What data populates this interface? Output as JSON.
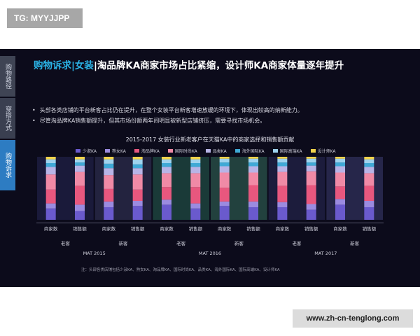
{
  "tag": "TG: MYYJJPP",
  "sidebar": [
    "购物路径",
    "穿搭方式",
    "购物诉求"
  ],
  "title": {
    "highlight": "购物诉求|女装",
    "rest": "|淘品牌KA商家市场占比紧缩，设计师KA商家体量逐年提升"
  },
  "bullets": [
    "头部各类店铺的平台新客占比仍在提升，在整个女装平台新客增速放缓的环境下，体现出较高的纳新能力。",
    "尽管淘品牌KA销售额提升，但其市场份额两年间明显被新型店铺挤压，需要寻找市场机会。"
  ],
  "chart_data": {
    "type": "bar",
    "stacked": true,
    "title": "2015-2017 女装行业新老客户在天猫KA中的商家选择和销售额贡献",
    "legend": [
      {
        "name": "少淑KA",
        "color": "#6a5acd"
      },
      {
        "name": "熟女KA",
        "color": "#9b8be0"
      },
      {
        "name": "淘品牌KA",
        "color": "#e8577e"
      },
      {
        "name": "国际时尚KA",
        "color": "#f08aa6"
      },
      {
        "name": "品类KA",
        "color": "#b8b4e6"
      },
      {
        "name": "海外国际KA",
        "color": "#3fa9d6"
      },
      {
        "name": "国际高端KA",
        "color": "#9fd3ee"
      },
      {
        "name": "设计师KA",
        "color": "#f2d34b"
      }
    ],
    "categories": [
      "商家数",
      "销售额",
      "商家数",
      "销售额",
      "商家数",
      "销售额",
      "商家数",
      "销售额",
      "商家数",
      "销售额",
      "商家数",
      "销售额"
    ],
    "groups": [
      "老客",
      "新客",
      "老客",
      "新客",
      "老客",
      "新客"
    ],
    "periods": [
      "MAT 2015",
      "MAT 2016",
      "MAT 2017"
    ],
    "ylim": [
      0,
      100
    ],
    "series_values": [
      [
        18,
        14,
        20,
        22,
        24,
        18,
        22,
        20,
        20,
        16,
        24,
        20
      ],
      [
        8,
        10,
        9,
        8,
        8,
        8,
        7,
        9,
        8,
        9,
        9,
        10
      ],
      [
        22,
        30,
        20,
        18,
        20,
        26,
        22,
        26,
        26,
        30,
        20,
        24
      ],
      [
        24,
        22,
        22,
        24,
        22,
        22,
        24,
        20,
        22,
        22,
        22,
        20
      ],
      [
        12,
        10,
        11,
        10,
        10,
        10,
        10,
        10,
        9,
        9,
        10,
        10
      ],
      [
        6,
        5,
        7,
        6,
        6,
        6,
        6,
        6,
        6,
        5,
        6,
        6
      ],
      [
        6,
        5,
        7,
        8,
        6,
        6,
        6,
        6,
        6,
        6,
        6,
        6
      ],
      [
        4,
        4,
        4,
        4,
        4,
        4,
        3,
        3,
        3,
        3,
        3,
        4
      ]
    ],
    "note": "注：头部各类店铺包括少淑KA、熟女KA、淘品牌KA、国际时尚KA、品类KA、海外国际KA、国际高端KA、设计师KA"
  },
  "watermark": "www.zh-cn-tenglong.com"
}
